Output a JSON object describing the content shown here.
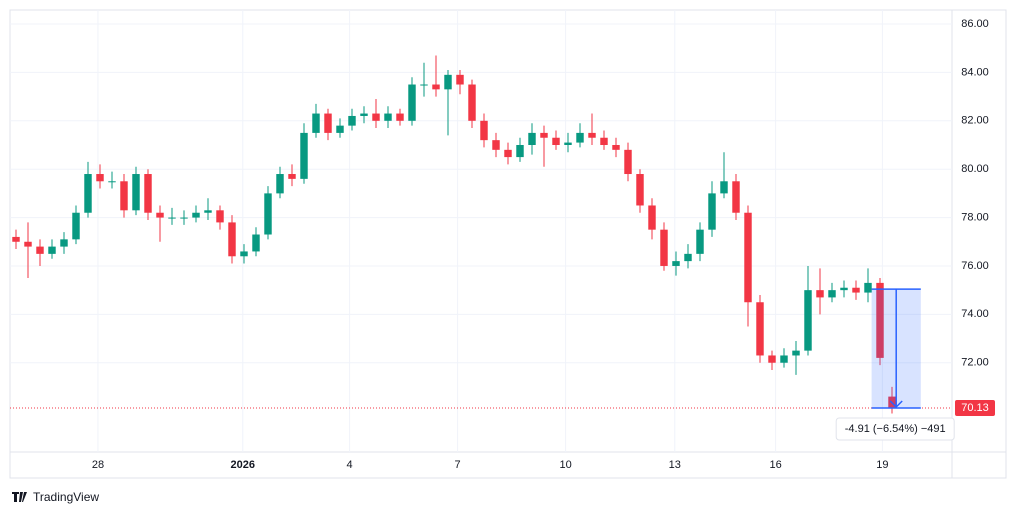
{
  "chart_data": {
    "type": "candlestick",
    "x": [
      0,
      1,
      2,
      3,
      4,
      5,
      6,
      7,
      8,
      9,
      10,
      11,
      12,
      13,
      14,
      15,
      16,
      17,
      18,
      19,
      20,
      21,
      22,
      23,
      24,
      25,
      26,
      27,
      28,
      29,
      30,
      31,
      32,
      33,
      34,
      35,
      36,
      37,
      38,
      39,
      40,
      41,
      42,
      43,
      44,
      45,
      46,
      47,
      48,
      49,
      50,
      51,
      52,
      53,
      54,
      55,
      56,
      57,
      58,
      59,
      60,
      61,
      62,
      63,
      64,
      65,
      66,
      67,
      68,
      69,
      70,
      71,
      72,
      73
    ],
    "open": [
      77.2,
      77.0,
      76.8,
      76.5,
      76.8,
      77.1,
      78.2,
      79.8,
      79.5,
      79.5,
      78.3,
      79.8,
      78.2,
      78.0,
      78.0,
      78.0,
      78.2,
      78.3,
      77.8,
      76.4,
      76.6,
      77.3,
      79.0,
      79.8,
      79.6,
      81.5,
      82.3,
      81.5,
      81.8,
      82.2,
      82.3,
      82.0,
      82.3,
      82.0,
      83.5,
      83.5,
      83.3,
      83.9,
      83.5,
      82.0,
      81.2,
      80.8,
      80.5,
      81.0,
      81.5,
      81.3,
      81.0,
      81.1,
      81.5,
      81.3,
      81.0,
      80.8,
      79.8,
      78.5,
      77.5,
      76.0,
      76.2,
      76.5,
      77.5,
      79.0,
      79.5,
      78.2,
      74.5,
      72.3,
      72.0,
      72.3,
      72.5,
      75.0,
      74.7,
      75.0,
      75.1,
      74.9,
      75.3,
      70.6
    ],
    "high": [
      77.5,
      77.8,
      77.1,
      77.1,
      77.4,
      78.5,
      80.3,
      80.2,
      79.9,
      79.8,
      80.1,
      80.0,
      78.5,
      78.4,
      78.3,
      78.5,
      78.8,
      78.5,
      78.1,
      76.9,
      77.6,
      79.3,
      80.1,
      80.2,
      81.9,
      82.7,
      82.5,
      82.1,
      82.5,
      82.6,
      82.9,
      82.6,
      82.5,
      83.8,
      84.4,
      84.7,
      84.1,
      84.1,
      83.7,
      82.3,
      81.5,
      81.1,
      81.3,
      81.9,
      81.8,
      81.6,
      81.5,
      81.9,
      82.3,
      81.6,
      81.3,
      81.1,
      80.0,
      78.8,
      77.8,
      76.6,
      76.9,
      77.8,
      79.5,
      80.7,
      79.8,
      78.5,
      74.8,
      72.5,
      72.6,
      72.9,
      76.0,
      75.9,
      75.3,
      75.4,
      75.4,
      75.9,
      75.5,
      71.0
    ],
    "low": [
      76.7,
      75.5,
      76.0,
      76.3,
      76.5,
      76.9,
      78.0,
      79.2,
      79.2,
      78.0,
      78.1,
      77.9,
      77.0,
      77.7,
      77.7,
      77.8,
      77.9,
      77.5,
      76.1,
      76.1,
      76.4,
      77.1,
      78.8,
      79.3,
      79.4,
      81.3,
      81.2,
      81.3,
      81.6,
      81.9,
      81.7,
      81.7,
      81.8,
      81.8,
      83.0,
      83.0,
      81.4,
      83.1,
      81.7,
      80.9,
      80.5,
      80.2,
      80.3,
      80.6,
      80.1,
      80.8,
      80.7,
      80.9,
      81.0,
      80.8,
      80.5,
      79.5,
      78.2,
      77.1,
      75.8,
      75.6,
      75.9,
      76.2,
      77.2,
      78.8,
      77.9,
      73.5,
      72.0,
      71.7,
      71.8,
      71.5,
      72.3,
      74.0,
      74.5,
      74.7,
      74.6,
      74.5,
      71.9,
      69.9
    ],
    "close": [
      77.0,
      76.8,
      76.5,
      76.8,
      77.1,
      78.2,
      79.8,
      79.5,
      79.5,
      78.3,
      79.8,
      78.2,
      78.0,
      78.0,
      78.0,
      78.2,
      78.3,
      77.8,
      76.4,
      76.6,
      77.3,
      79.0,
      79.8,
      79.6,
      81.5,
      82.3,
      81.5,
      81.8,
      82.2,
      82.3,
      82.0,
      82.3,
      82.0,
      83.5,
      83.5,
      83.3,
      83.9,
      83.5,
      82.0,
      81.2,
      80.8,
      80.5,
      81.0,
      81.5,
      81.3,
      81.0,
      81.1,
      81.5,
      81.3,
      81.0,
      80.8,
      79.8,
      78.5,
      77.5,
      76.0,
      76.2,
      76.5,
      77.5,
      79.0,
      79.5,
      78.2,
      74.5,
      72.3,
      72.0,
      72.3,
      72.5,
      75.0,
      74.7,
      75.0,
      75.1,
      74.9,
      75.3,
      72.2,
      70.13
    ],
    "up_color": "#089981",
    "down_color": "#f23645",
    "xlim": [
      -0.5,
      78
    ],
    "xticks": [
      {
        "value": 6.83,
        "label": "28"
      },
      {
        "value": 18.9,
        "label": "2026"
      },
      {
        "value": 27.8,
        "label": "4"
      },
      {
        "value": 36.8,
        "label": "7"
      },
      {
        "value": 45.8,
        "label": "10"
      },
      {
        "value": 54.9,
        "label": "13"
      },
      {
        "value": 63.3,
        "label": "16"
      },
      {
        "value": 72.2,
        "label": "19"
      }
    ],
    "ylim": [
      68.31,
      86.58
    ],
    "yticks": [
      {
        "value": 72,
        "label": "72.00"
      },
      {
        "value": 74,
        "label": "74.00"
      },
      {
        "value": 76,
        "label": "76.00"
      },
      {
        "value": 78,
        "label": "78.00"
      },
      {
        "value": 80,
        "label": "80.00"
      },
      {
        "value": 82,
        "label": "82.00"
      },
      {
        "value": 84,
        "label": "84.00"
      },
      {
        "value": 86,
        "label": "86.00"
      }
    ],
    "grid": true,
    "last_price": 70.13,
    "measure": {
      "x_from": 71.3,
      "x_to": 75.4,
      "from": 75.04,
      "to": 70.13,
      "label": "-4.91 (−6.54%) −491",
      "color": "#2962ff"
    },
    "brand": "TradingView"
  }
}
